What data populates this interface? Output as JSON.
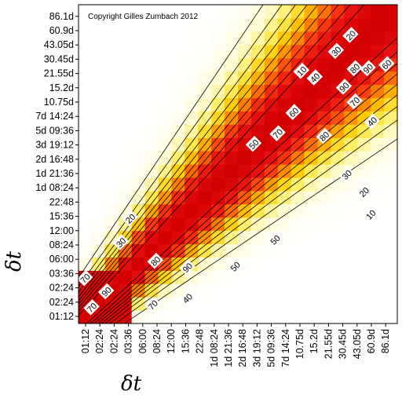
{
  "chart_data": {
    "type": "heatmap",
    "title": "",
    "copyright": "Copyright Gilles Zumbach 2012",
    "xlabel": "δt",
    "ylabel": "δt",
    "x_ticks": [
      "01:12",
      "02:24",
      "02:24",
      "03:36",
      "06:00",
      "08:24",
      "12:00",
      "15:36",
      "22:48",
      "1d 08:24",
      "1d 21:36",
      "2d 16:48",
      "3d 19:12",
      "5d 09:36",
      "7d 14:24",
      "10.75d",
      "15.2d",
      "21.55d",
      "30.45d",
      "43.05d",
      "60.9d",
      "86.1d"
    ],
    "y_ticks": [
      "01:12",
      "02:24",
      "02:24",
      "03:36",
      "06:00",
      "08:24",
      "12:00",
      "15:36",
      "22:48",
      "1d 08:24",
      "1d 21:36",
      "2d 16:48",
      "3d 19:12",
      "5d 09:36",
      "7d 14:24",
      "10.75d",
      "15.2d",
      "21.55d",
      "30.45d",
      "43.05d",
      "60.9d",
      "86.1d"
    ],
    "contour_levels": [
      10,
      20,
      30,
      40,
      50,
      60,
      70,
      80,
      90
    ],
    "value_range": [
      0,
      100
    ],
    "colorscale": [
      "#ffffff",
      "#fffbd0",
      "#ffee60",
      "#ffcc00",
      "#ff8800",
      "#ff3a10",
      "#e81010",
      "#d40000"
    ],
    "contour_labels": [
      {
        "value": "20",
        "x": 20.5,
        "y": 21.7
      },
      {
        "value": "30",
        "x": 19.4,
        "y": 20.5
      },
      {
        "value": "40",
        "x": 17.8,
        "y": 18.5
      },
      {
        "value": "10",
        "x": 16.8,
        "y": 19.0
      },
      {
        "value": "80",
        "x": 20.8,
        "y": 19.2
      },
      {
        "value": "90",
        "x": 21.8,
        "y": 19.2
      },
      {
        "value": "60",
        "x": 23.2,
        "y": 19.5
      },
      {
        "value": "90",
        "x": 20.0,
        "y": 17.8
      },
      {
        "value": "70",
        "x": 20.8,
        "y": 16.7
      },
      {
        "value": "60",
        "x": 16.2,
        "y": 15.9
      },
      {
        "value": "70",
        "x": 15.0,
        "y": 14.3
      },
      {
        "value": "80",
        "x": 18.5,
        "y": 14.1
      },
      {
        "value": "50",
        "x": 13.2,
        "y": 13.5
      },
      {
        "value": "40",
        "x": 22.1,
        "y": 15.2
      },
      {
        "value": "30",
        "x": 20.2,
        "y": 11.2
      },
      {
        "value": "20",
        "x": 21.5,
        "y": 9.9
      },
      {
        "value": "10",
        "x": 22.0,
        "y": 8.2
      },
      {
        "value": "20",
        "x": 3.9,
        "y": 7.9
      },
      {
        "value": "30",
        "x": 3.2,
        "y": 6.1
      },
      {
        "value": "50",
        "x": 14.8,
        "y": 6.3
      },
      {
        "value": "80",
        "x": 5.8,
        "y": 4.7
      },
      {
        "value": "90",
        "x": 8.2,
        "y": 4.2
      },
      {
        "value": "50",
        "x": 11.8,
        "y": 4.3
      },
      {
        "value": "40",
        "x": 8.2,
        "y": 1.9
      },
      {
        "value": "70",
        "x": 5.6,
        "y": 1.4
      },
      {
        "value": "90",
        "x": 2.1,
        "y": 2.4
      },
      {
        "value": "70",
        "x": 1.0,
        "y": 1.2
      },
      {
        "value": "70",
        "x": 0.5,
        "y": 3.4
      }
    ]
  }
}
